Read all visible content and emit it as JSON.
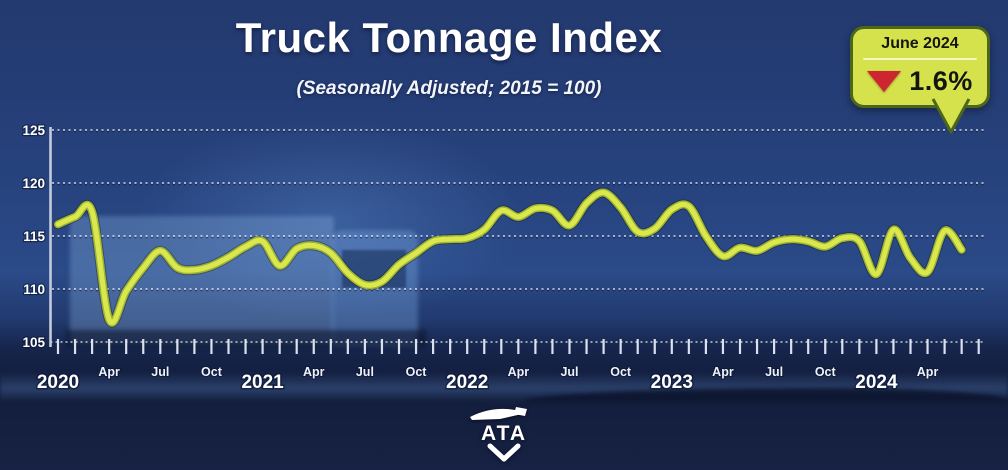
{
  "header": {
    "title": "Truck Tonnage Index",
    "subtitle": "(Seasonally Adjusted; 2015 = 100)"
  },
  "badge": {
    "period": "June 2024",
    "change_pct": "1.6%",
    "direction": "down"
  },
  "logo": {
    "text": "ATA"
  },
  "colors": {
    "background_navy": "#24396e",
    "sky_blue": "#26428a",
    "line_core": "#d9e84d",
    "line_edge": "#a2b233",
    "badge_fill": "#d6e24c",
    "badge_border": "#4c661c",
    "badge_divider": "#f2f7c8",
    "badge_text": "#14150f",
    "arrow_red": "#cd2630",
    "axis": "#c3cbdc",
    "tick": "#e6ebf5",
    "grid": "#ffffff",
    "label": "#ffffff"
  },
  "chart_data": {
    "type": "line",
    "title": "Truck Tonnage Index",
    "subtitle": "(Seasonally Adjusted; 2015 = 100)",
    "series_name": "Truck Tonnage Index (Seasonally Adjusted)",
    "ylim": [
      105,
      125
    ],
    "yticks": [
      105,
      110,
      115,
      120,
      125
    ],
    "grid": "dashed horizontal",
    "legend": "none",
    "x": [
      "Jan 2020",
      "Feb 2020",
      "Mar 2020",
      "Apr 2020",
      "May 2020",
      "Jun 2020",
      "Jul 2020",
      "Aug 2020",
      "Sep 2020",
      "Oct 2020",
      "Nov 2020",
      "Dec 2020",
      "Jan 2021",
      "Feb 2021",
      "Mar 2021",
      "Apr 2021",
      "May 2021",
      "Jun 2021",
      "Jul 2021",
      "Aug 2021",
      "Sep 2021",
      "Oct 2021",
      "Nov 2021",
      "Dec 2021",
      "Jan 2022",
      "Feb 2022",
      "Mar 2022",
      "Apr 2022",
      "May 2022",
      "Jun 2022",
      "Jul 2022",
      "Aug 2022",
      "Sep 2022",
      "Oct 2022",
      "Nov 2022",
      "Dec 2022",
      "Jan 2023",
      "Feb 2023",
      "Mar 2023",
      "Apr 2023",
      "May 2023",
      "Jun 2023",
      "Jul 2023",
      "Aug 2023",
      "Sep 2023",
      "Oct 2023",
      "Nov 2023",
      "Dec 2023",
      "Jan 2024",
      "Feb 2024",
      "Mar 2024",
      "Apr 2024",
      "May 2024",
      "Jun 2024"
    ],
    "values": [
      116.1,
      116.8,
      117.3,
      107.1,
      109.8,
      112.0,
      113.6,
      112.0,
      111.8,
      112.2,
      113.0,
      114.0,
      114.5,
      112.2,
      113.8,
      114.1,
      113.4,
      111.5,
      110.4,
      110.7,
      112.3,
      113.4,
      114.5,
      114.7,
      114.8,
      115.6,
      117.4,
      116.8,
      117.6,
      117.4,
      116.0,
      118.1,
      119.1,
      117.7,
      115.4,
      115.7,
      117.5,
      117.8,
      115.0,
      113.1,
      113.9,
      113.6,
      114.4,
      114.7,
      114.5,
      114.0,
      114.8,
      114.5,
      111.4,
      115.6,
      112.9,
      111.6,
      115.5,
      113.7
    ],
    "x_tick_labels": [
      {
        "index": 0,
        "label": "2020",
        "kind": "year"
      },
      {
        "index": 3,
        "label": "Apr",
        "kind": "month"
      },
      {
        "index": 6,
        "label": "Jul",
        "kind": "month"
      },
      {
        "index": 9,
        "label": "Oct",
        "kind": "month"
      },
      {
        "index": 12,
        "label": "2021",
        "kind": "year"
      },
      {
        "index": 15,
        "label": "Apr",
        "kind": "month"
      },
      {
        "index": 18,
        "label": "Jul",
        "kind": "month"
      },
      {
        "index": 21,
        "label": "Oct",
        "kind": "month"
      },
      {
        "index": 24,
        "label": "2022",
        "kind": "year"
      },
      {
        "index": 27,
        "label": "Apr",
        "kind": "month"
      },
      {
        "index": 30,
        "label": "Jul",
        "kind": "month"
      },
      {
        "index": 33,
        "label": "Oct",
        "kind": "month"
      },
      {
        "index": 36,
        "label": "2023",
        "kind": "year"
      },
      {
        "index": 39,
        "label": "Apr",
        "kind": "month"
      },
      {
        "index": 42,
        "label": "Jul",
        "kind": "month"
      },
      {
        "index": 45,
        "label": "Oct",
        "kind": "month"
      },
      {
        "index": 48,
        "label": "2024",
        "kind": "year"
      },
      {
        "index": 51,
        "label": "Apr",
        "kind": "month"
      }
    ]
  }
}
